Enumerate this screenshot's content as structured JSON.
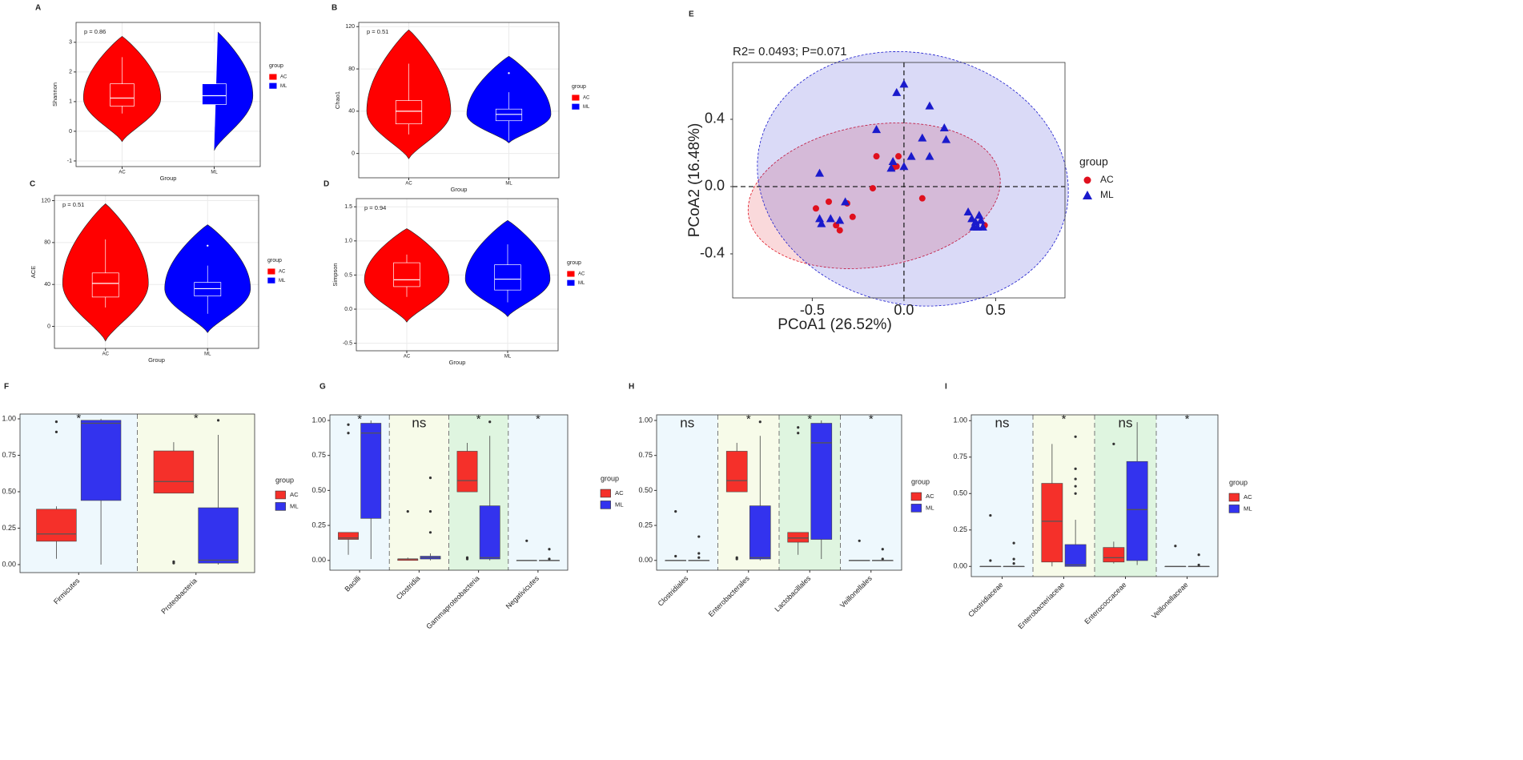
{
  "chart_data": [
    {
      "type": "violin",
      "label": "A",
      "annotation": "p = 0.86",
      "x_label": "Group",
      "y_label": "Shannon",
      "legend_title": "group",
      "grid": true,
      "ylim": [
        -1.19,
        3.67
      ],
      "yticks": [
        -1,
        0,
        1,
        2,
        3
      ],
      "series": [
        {
          "name": "AC",
          "color": "#ff0000",
          "violin": [
            -0.35,
            3.2
          ],
          "box": [
            0.6,
            0.85,
            1.12,
            1.6,
            2.5
          ],
          "outliers": []
        },
        {
          "name": "ML",
          "color": "#0000ff",
          "violin": [
            -0.65,
            3.45
          ],
          "box": [
            0.15,
            0.9,
            1.2,
            1.6,
            3.0
          ],
          "outliers": []
        }
      ]
    },
    {
      "type": "violin",
      "label": "B",
      "annotation": "p = 0.51",
      "x_label": "Group",
      "y_label": "Chao1",
      "legend_title": "group",
      "grid": true,
      "ylim": [
        -23,
        124
      ],
      "yticks": [
        0,
        40,
        80,
        120
      ],
      "series": [
        {
          "name": "AC",
          "color": "#ff0000",
          "violin": [
            -5,
            117
          ],
          "box": [
            18,
            28,
            40,
            50,
            85
          ],
          "outliers": []
        },
        {
          "name": "ML",
          "color": "#0000ff",
          "violin": [
            10,
            92
          ],
          "box": [
            12,
            31,
            37,
            42,
            58
          ],
          "outliers": [
            76
          ]
        }
      ]
    },
    {
      "type": "violin",
      "label": "C",
      "annotation": "p = 0.51",
      "x_label": "Group",
      "y_label": "ACE",
      "legend_title": "group",
      "grid": true,
      "ylim": [
        -21,
        125
      ],
      "yticks": [
        0,
        40,
        80,
        120
      ],
      "series": [
        {
          "name": "AC",
          "color": "#ff0000",
          "violin": [
            -14,
            117
          ],
          "box": [
            18,
            28,
            41,
            51,
            83
          ],
          "outliers": []
        },
        {
          "name": "ML",
          "color": "#0000ff",
          "violin": [
            -6,
            97
          ],
          "box": [
            12,
            29,
            36,
            42,
            58
          ],
          "outliers": [
            77
          ]
        }
      ]
    },
    {
      "type": "violin",
      "label": "D",
      "annotation": "p = 0.94",
      "x_label": "Group",
      "y_label": "Simpson",
      "legend_title": "group",
      "grid": true,
      "ylim": [
        -0.61,
        1.62
      ],
      "yticks": [
        {
          "value": -0.5,
          "label": "-0.5"
        },
        {
          "value": 0,
          "label": "0.0"
        },
        0.5,
        {
          "value": 1,
          "label": "1.0"
        },
        1.5
      ],
      "series": [
        {
          "name": "AC",
          "color": "#ff0000",
          "violin": [
            -0.19,
            1.18
          ],
          "box": [
            0.18,
            0.33,
            0.43,
            0.68,
            0.8
          ],
          "outliers": []
        },
        {
          "name": "ML",
          "color": "#0000ff",
          "violin": [
            -0.11,
            1.3
          ],
          "box": [
            0.1,
            0.28,
            0.44,
            0.65,
            0.95
          ],
          "outliers": []
        }
      ]
    },
    {
      "type": "scatter",
      "label": "E",
      "annotation": "R2= 0.0493; P=0.071",
      "x_label": "PCoA1 (26.52%)",
      "y_label": "PCoA2 (16.48%)",
      "legend_title": "group",
      "xlim": [
        -0.934,
        0.878
      ],
      "ylim": [
        -0.662,
        0.738
      ],
      "xticks": [
        -0.5,
        {
          "value": 0,
          "label": "0.0"
        },
        0.5
      ],
      "yticks": [
        {
          "value": -0.4,
          "label": "-0.4"
        },
        {
          "value": 0,
          "label": "0.0"
        },
        0.4
      ],
      "series": [
        {
          "name": "AC",
          "color": "#e0101e",
          "marker": "circle",
          "x": [
            -0.15,
            -0.04,
            -0.03,
            -0.17,
            -0.41,
            -0.48,
            -0.31,
            -0.28,
            -0.37,
            -0.35,
            0.1,
            0.44,
            -0.06
          ],
          "y": [
            0.18,
            0.12,
            0.18,
            -0.01,
            -0.09,
            -0.13,
            -0.1,
            -0.18,
            -0.23,
            -0.26,
            -0.07,
            -0.23,
            0.11
          ]
        },
        {
          "name": "ML",
          "color": "#1a1acc",
          "marker": "triangle",
          "x": [
            0.0,
            -0.04,
            0.14,
            -0.15,
            0.22,
            0.23,
            0.1,
            0.14,
            -0.06,
            0.0,
            0.04,
            -0.07,
            -0.46,
            -0.32,
            -0.46,
            -0.45,
            -0.4,
            -0.35,
            0.35,
            0.37,
            0.39,
            0.41,
            0.42,
            0.4,
            0.38,
            0.43
          ],
          "y": [
            0.61,
            0.56,
            0.48,
            0.34,
            0.35,
            0.28,
            0.29,
            0.18,
            0.15,
            0.12,
            0.18,
            0.11,
            0.08,
            -0.09,
            -0.19,
            -0.22,
            -0.19,
            -0.2,
            -0.15,
            -0.19,
            -0.21,
            -0.17,
            -0.2,
            -0.24,
            -0.24,
            -0.24
          ]
        }
      ]
    },
    {
      "type": "box",
      "label": "F",
      "legend_title": "group",
      "ylim": [
        -0.055,
        1.033
      ],
      "yticks": [
        {
          "value": 0,
          "label": "0.00"
        },
        {
          "value": 0.25,
          "label": "0.25"
        },
        {
          "value": 0.5,
          "label": "0.50"
        },
        {
          "value": 0.75,
          "label": "0.75"
        },
        {
          "value": 1,
          "label": "1.00"
        }
      ],
      "categories": [
        "Firmicutes",
        "Proteobacteria"
      ],
      "significance": [
        "*",
        "*"
      ],
      "band_colors": [
        "#eef8fd",
        "#f7fbe9"
      ],
      "series": [
        {
          "name": "AC",
          "color": "#f5302a",
          "boxes": [
            [
              0.04,
              0.16,
              0.21,
              0.38,
              0.4
            ],
            [
              0.49,
              0.49,
              0.57,
              0.78,
              0.84
            ]
          ],
          "outliers": [
            [
              0.91,
              0.98
            ],
            [
              0.01,
              0.02
            ]
          ]
        },
        {
          "name": "ML",
          "color": "#3333ee",
          "boxes": [
            [
              0.0,
              0.44,
              0.97,
              0.99,
              1.0
            ],
            [
              0.0,
              0.01,
              0.03,
              0.39,
              0.89
            ]
          ],
          "outliers": [
            [],
            [
              0.99
            ]
          ]
        }
      ]
    },
    {
      "type": "box",
      "label": "G",
      "legend_title": "group",
      "ylim": [
        -0.07,
        1.04
      ],
      "yticks": [
        {
          "value": 0,
          "label": "0.00"
        },
        {
          "value": 0.25,
          "label": "0.25"
        },
        {
          "value": 0.5,
          "label": "0.50"
        },
        {
          "value": 0.75,
          "label": "0.75"
        },
        {
          "value": 1,
          "label": "1.00"
        }
      ],
      "categories": [
        "Bacilli",
        "Clostridia",
        "Gammaproteobacteria",
        "Negativicutes"
      ],
      "significance": [
        "*",
        "ns",
        "*",
        "*"
      ],
      "band_colors": [
        "#eef8fd",
        "#f7fbe9",
        "#dff5e0",
        "#eef8fd"
      ],
      "series": [
        {
          "name": "AC",
          "color": "#f5302a",
          "boxes": [
            [
              0.04,
              0.15,
              0.16,
              0.2,
              0.2
            ],
            [
              0.0,
              0.0,
              0.01,
              0.01,
              0.02
            ],
            [
              0.49,
              0.49,
              0.57,
              0.78,
              0.84
            ],
            [
              0,
              0,
              0,
              0,
              0
            ]
          ],
          "outliers": [
            [
              0.91,
              0.97
            ],
            [
              0.35
            ],
            [
              0.01,
              0.02
            ],
            [
              0.14
            ]
          ]
        },
        {
          "name": "ML",
          "color": "#3333ee",
          "boxes": [
            [
              0.01,
              0.3,
              0.91,
              0.98,
              1.0
            ],
            [
              0.0,
              0.01,
              0.02,
              0.03,
              0.05
            ],
            [
              0.0,
              0.01,
              0.02,
              0.39,
              0.89
            ],
            [
              0,
              0,
              0,
              0,
              0
            ]
          ],
          "outliers": [
            [],
            [
              0.2,
              0.35,
              0.59
            ],
            [
              0.99
            ],
            [
              0.08,
              0.01
            ]
          ]
        }
      ]
    },
    {
      "type": "box",
      "label": "H",
      "legend_title": "group",
      "ylim": [
        -0.07,
        1.04
      ],
      "yticks": [
        {
          "value": 0,
          "label": "0.00"
        },
        {
          "value": 0.25,
          "label": "0.25"
        },
        {
          "value": 0.5,
          "label": "0.50"
        },
        {
          "value": 0.75,
          "label": "0.75"
        },
        {
          "value": 1,
          "label": "1.00"
        }
      ],
      "categories": [
        "Clostridiales",
        "Enterobacterales",
        "Lactobacillales",
        "Veillonellales"
      ],
      "significance": [
        "ns",
        "*",
        "*",
        "*"
      ],
      "band_colors": [
        "#eef8fd",
        "#f7fbe9",
        "#dff5e0",
        "#eef8fd"
      ],
      "series": [
        {
          "name": "AC",
          "color": "#f5302a",
          "boxes": [
            [
              0,
              0,
              0,
              0,
              0
            ],
            [
              0.49,
              0.49,
              0.57,
              0.78,
              0.84
            ],
            [
              0.04,
              0.13,
              0.16,
              0.2,
              0.2
            ],
            [
              0,
              0,
              0,
              0,
              0
            ]
          ],
          "outliers": [
            [
              0.35,
              0.03
            ],
            [
              0.01,
              0.02
            ],
            [
              0.91,
              0.95
            ],
            [
              0.14
            ]
          ]
        },
        {
          "name": "ML",
          "color": "#3333ee",
          "boxes": [
            [
              0,
              0,
              0,
              0,
              0
            ],
            [
              0.0,
              0.01,
              0.02,
              0.39,
              0.89
            ],
            [
              0.01,
              0.15,
              0.84,
              0.98,
              1.0
            ],
            [
              0,
              0,
              0,
              0,
              0
            ]
          ],
          "outliers": [
            [
              0.17,
              0.05,
              0.02
            ],
            [
              0.99
            ],
            [],
            [
              0.08,
              0.01
            ]
          ]
        }
      ]
    },
    {
      "type": "box",
      "label": "I",
      "legend_title": "group",
      "ylim": [
        -0.07,
        1.04
      ],
      "yticks": [
        {
          "value": 0,
          "label": "0.00"
        },
        {
          "value": 0.25,
          "label": "0.25"
        },
        {
          "value": 0.5,
          "label": "0.50"
        },
        {
          "value": 0.75,
          "label": "0.75"
        },
        {
          "value": 1,
          "label": "1.00"
        }
      ],
      "categories": [
        "Clostridiaceae",
        "Enterobacteriaceae",
        "Enterococcaceae",
        "Veillonellaceae"
      ],
      "significance": [
        "ns",
        "*",
        "ns",
        "*"
      ],
      "band_colors": [
        "#eef8fd",
        "#f7fbe9",
        "#dff5e0",
        "#eef8fd"
      ],
      "series": [
        {
          "name": "AC",
          "color": "#f5302a",
          "boxes": [
            [
              0,
              0,
              0,
              0,
              0
            ],
            [
              0.0,
              0.03,
              0.31,
              0.57,
              0.84
            ],
            [
              0.02,
              0.03,
              0.06,
              0.13,
              0.17
            ],
            [
              0,
              0,
              0,
              0,
              0
            ]
          ],
          "outliers": [
            [
              0.35,
              0.04
            ],
            [],
            [
              0.84
            ],
            [
              0.14
            ]
          ]
        },
        {
          "name": "ML",
          "color": "#3333ee",
          "boxes": [
            [
              0,
              0,
              0,
              0,
              0
            ],
            [
              0.0,
              0.0,
              0.01,
              0.15,
              0.32
            ],
            [
              0.01,
              0.04,
              0.39,
              0.72,
              0.99
            ],
            [
              0,
              0,
              0,
              0,
              0
            ]
          ],
          "outliers": [
            [
              0.16,
              0.05,
              0.02
            ],
            [
              0.5,
              0.55,
              0.6,
              0.67,
              0.89
            ],
            [],
            [
              0.08,
              0.01
            ]
          ]
        }
      ]
    }
  ]
}
